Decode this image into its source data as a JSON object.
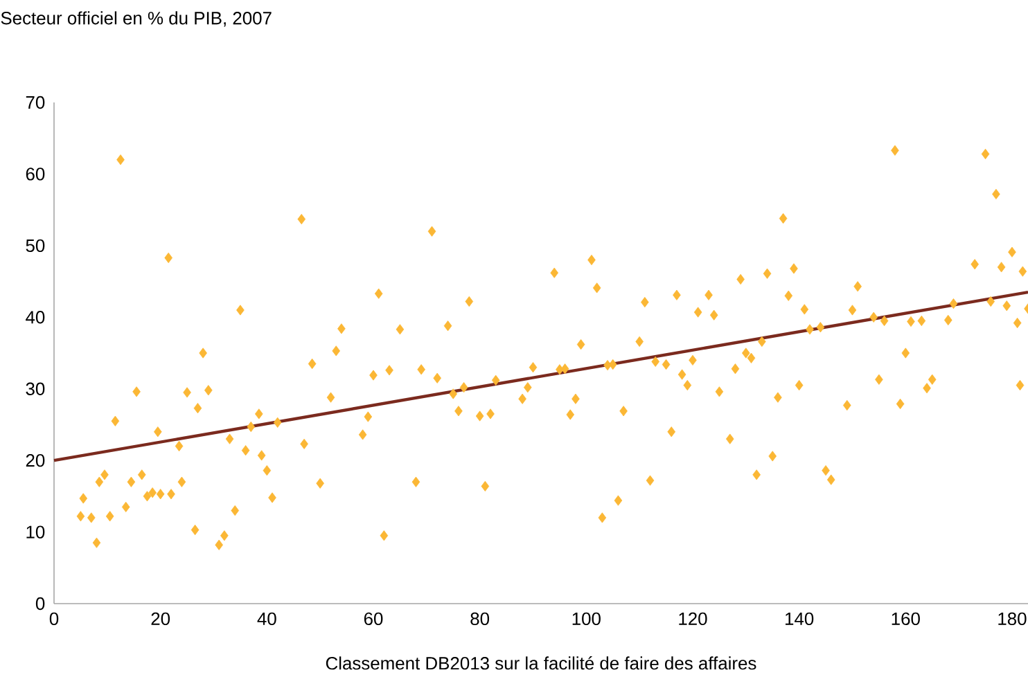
{
  "chart_data": {
    "type": "scatter",
    "ylabel": "Secteur officiel en % du PIB, 2007",
    "xlabel": "Classement DB2013 sur la facilité de faire des affaires",
    "xlim": [
      0,
      183
    ],
    "ylim": [
      0,
      70
    ],
    "xticks": [
      0,
      20,
      40,
      60,
      80,
      100,
      120,
      140,
      160,
      180
    ],
    "yticks": [
      0,
      10,
      20,
      30,
      40,
      50,
      60,
      70
    ],
    "grid": false,
    "series": [
      {
        "marker": "diamond",
        "color": "#fbb735",
        "x": [
          5,
          5.5,
          7,
          8,
          8.5,
          9.5,
          10.5,
          11.5,
          12.5,
          13.5,
          14.5,
          15.5,
          16.5,
          17.5,
          18.5,
          19.5,
          20,
          21.5,
          22,
          23.5,
          24,
          25,
          26.5,
          27,
          28,
          29,
          31,
          32,
          33,
          34,
          35,
          36,
          37,
          38.5,
          39,
          40,
          41,
          42,
          46.5,
          47,
          48.5,
          50,
          52,
          53,
          54,
          58,
          59,
          60,
          61,
          62,
          63,
          65,
          68,
          69,
          71,
          72,
          74,
          75,
          76,
          77,
          78,
          80,
          81,
          82,
          83,
          88,
          89,
          90,
          94,
          95,
          96,
          97,
          98,
          99,
          101,
          102,
          103,
          104,
          105,
          106,
          107,
          110,
          111,
          112,
          113,
          115,
          116,
          117,
          118,
          119,
          120,
          121,
          123,
          124,
          125,
          127,
          128,
          129,
          130,
          131,
          132,
          133,
          134,
          135,
          136,
          137,
          138,
          139,
          140,
          141,
          142,
          144,
          145,
          146,
          149,
          150,
          151,
          154,
          155,
          156,
          158,
          159,
          160,
          161,
          163,
          164,
          165,
          168,
          169,
          173,
          175,
          176,
          177,
          178,
          179,
          180,
          181,
          181.5,
          182,
          183
        ],
        "values": [
          12.2,
          14.7,
          12,
          8.5,
          17,
          18,
          12.2,
          25.5,
          62,
          13.5,
          17,
          29.6,
          18,
          15,
          15.5,
          24,
          15.3,
          48.3,
          15.3,
          22,
          17,
          29.5,
          10.3,
          27.3,
          35,
          29.8,
          8.2,
          9.5,
          23,
          13,
          41,
          21.4,
          24.7,
          26.5,
          20.7,
          18.6,
          14.8,
          25.3,
          53.7,
          22.3,
          33.5,
          16.8,
          28.8,
          35.3,
          38.4,
          23.6,
          26.1,
          31.9,
          43.3,
          9.5,
          32.6,
          38.3,
          17,
          32.7,
          52,
          31.5,
          38.8,
          29.3,
          26.9,
          30.2,
          42.2,
          26.2,
          16.4,
          26.5,
          31.2,
          28.6,
          30.2,
          33,
          46.2,
          32.7,
          32.8,
          26.4,
          28.6,
          36.2,
          48,
          44.1,
          12,
          33.3,
          33.4,
          14.4,
          26.9,
          36.6,
          42.1,
          17.2,
          33.8,
          33.4,
          24,
          43.1,
          32,
          30.5,
          34,
          40.7,
          43.1,
          40.3,
          29.6,
          23,
          32.8,
          45.3,
          35,
          34.3,
          18,
          36.6,
          46.1,
          20.6,
          28.8,
          53.8,
          43,
          46.8,
          30.5,
          41.1,
          38.3,
          38.6,
          18.6,
          17.3,
          27.7,
          41,
          44.3,
          40,
          31.3,
          39.5,
          63.3,
          27.9,
          35,
          39.4,
          39.5,
          30.1,
          31.3,
          39.6,
          41.9,
          47.4,
          62.8,
          42.2,
          57.2,
          47,
          41.6,
          49.1,
          39.2,
          30.5,
          46.4,
          41.2
        ]
      },
      {
        "type": "line",
        "color": "#7b2a1e",
        "x": [
          0,
          183
        ],
        "values": [
          20,
          43.5
        ]
      }
    ]
  }
}
